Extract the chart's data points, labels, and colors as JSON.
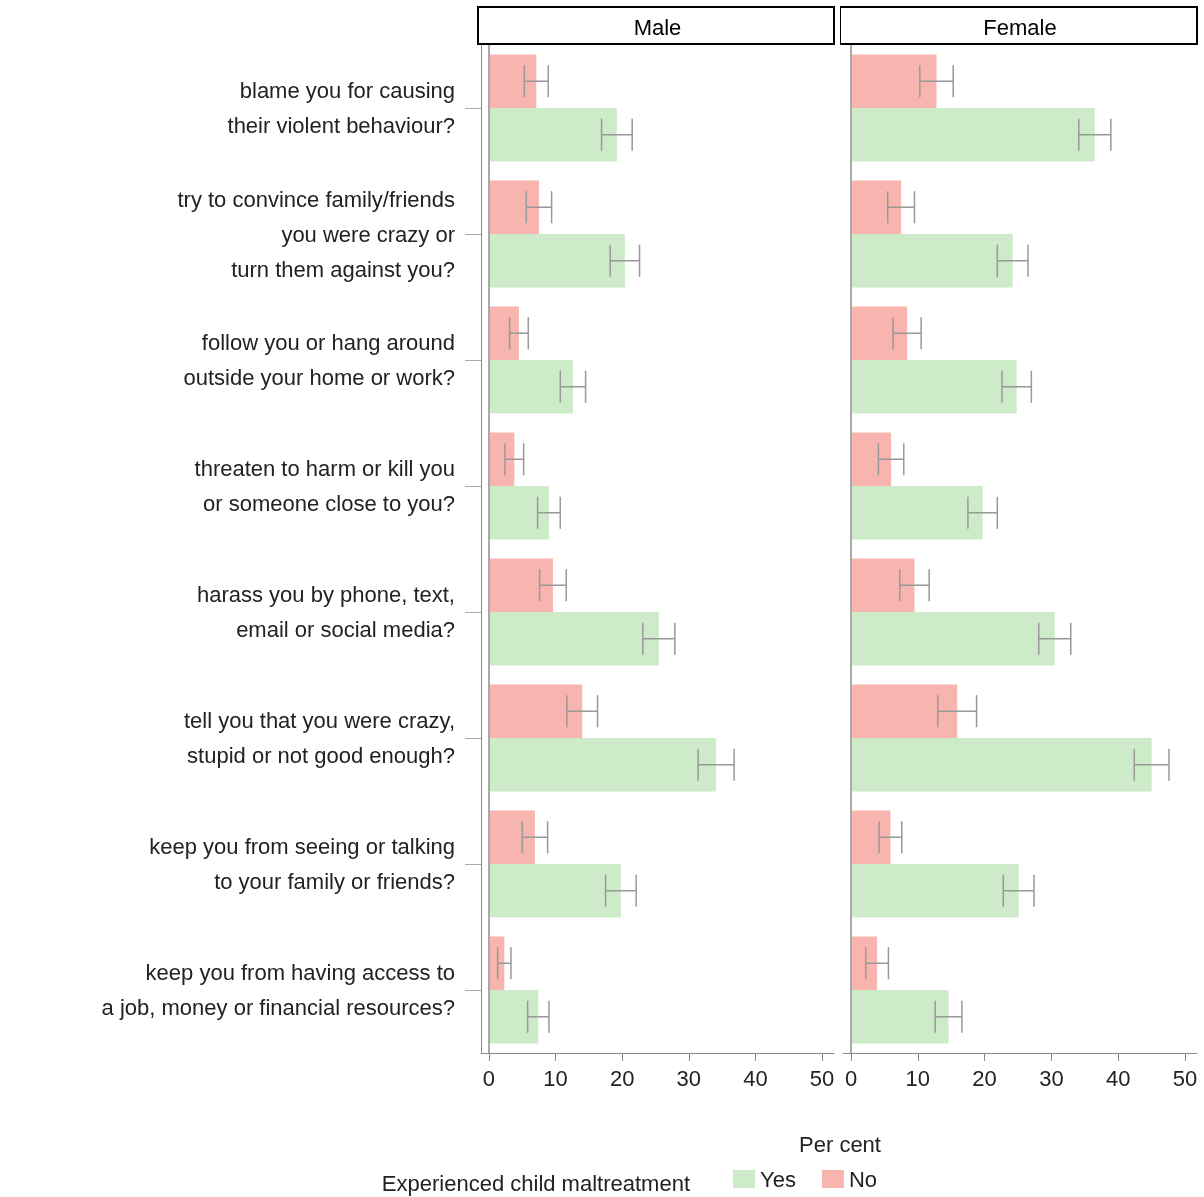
{
  "chart_data": [
    {
      "type": "bar",
      "title": "Male",
      "orientation": "horizontal",
      "xlabel": "Per cent",
      "legend": "bottom",
      "legend_title": "Experienced child maltreatment",
      "grid": false,
      "categories": [
        "blame you for causing\ntheir violent behaviour?",
        "try to convince family/friends\nyou were crazy or\nturn them against you?",
        "follow you or hang around\noutside your home or work?",
        "threaten to harm or kill you\nor someone close to you?",
        "harass you by phone, text,\nemail or social media?",
        "tell you that you were crazy,\nstupid or not good enough?",
        "keep you from seeing or talking\nto your family or friends?",
        "keep you from having access to\na job, money or financial resources?"
      ],
      "xlim": [
        -1.2,
        51.8
      ],
      "xticks": [
        0,
        10,
        20,
        30,
        40,
        50
      ],
      "ref_lines": [
        {
          "axis": "x",
          "value": 0,
          "color": "#aaaaaa"
        }
      ],
      "series": [
        {
          "name": "Yes",
          "color": "#cdebc8",
          "values": [
            19.2,
            20.4,
            12.6,
            9.0,
            25.5,
            34.1,
            19.8,
            7.4
          ],
          "errors": [
            2.3,
            2.2,
            1.9,
            1.7,
            2.4,
            2.7,
            2.3,
            1.6
          ]
        },
        {
          "name": "No",
          "color": "#f8b4ae",
          "values": [
            7.1,
            7.5,
            4.5,
            3.8,
            9.6,
            14.0,
            6.9,
            2.3
          ],
          "errors": [
            1.8,
            1.9,
            1.4,
            1.4,
            2.0,
            2.3,
            1.9,
            1.0
          ]
        }
      ]
    },
    {
      "type": "bar",
      "title": "Female",
      "orientation": "horizontal",
      "tick_labels": "x",
      "grid": false,
      "categories": [
        null,
        null,
        null,
        null,
        null,
        null,
        null,
        null
      ],
      "xlim": [
        -1.2,
        51.8
      ],
      "xticks": [
        0,
        10,
        20,
        30,
        40,
        50
      ],
      "ref_lines": [
        {
          "axis": "x",
          "value": 0,
          "color": "#aaaaaa"
        }
      ],
      "series": [
        {
          "color": "#cdebc8",
          "values": [
            36.5,
            24.2,
            24.8,
            19.7,
            30.5,
            45.0,
            25.1,
            14.6
          ],
          "errors": [
            2.4,
            2.3,
            2.2,
            2.2,
            2.4,
            2.6,
            2.3,
            2.0
          ]
        },
        {
          "color": "#f8b4ae",
          "values": [
            12.8,
            7.5,
            8.4,
            6.0,
            9.5,
            15.9,
            5.9,
            3.9
          ],
          "errors": [
            2.5,
            2.0,
            2.1,
            1.9,
            2.2,
            2.9,
            1.7,
            1.7
          ]
        }
      ]
    }
  ]
}
